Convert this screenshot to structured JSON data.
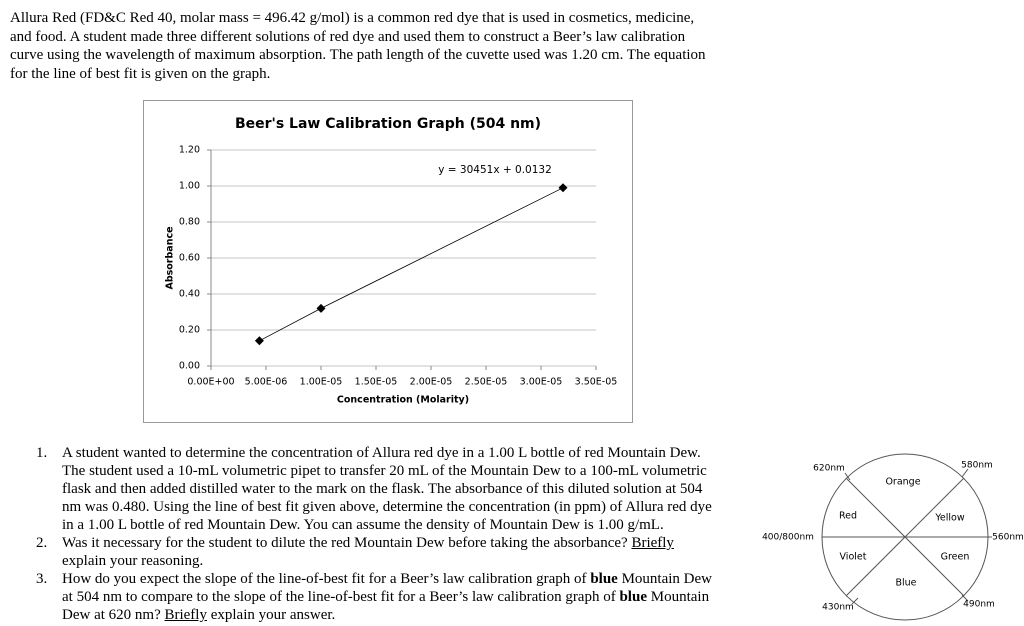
{
  "intro": [
    "Allura Red (FD&C Red 40, molar mass = 496.42 g/mol) is a common red dye that is used in cosmetics, medicine,",
    "and food. A student made three different solutions of red dye and used them to construct a Beer’s law calibration",
    "curve using the wavelength of maximum absorption. The path length of the cuvette used was 1.20 cm. The equation",
    "for the line of best fit is given on the graph."
  ],
  "chart_data": {
    "type": "scatter",
    "title": "Beer's Law Calibration Graph (504 nm)",
    "annotation": "y = 30451x + 0.0132",
    "xlabel": "Concentration (Molarity)",
    "ylabel": "Absorbance",
    "x": [
      4.4e-06,
      1e-05,
      3.2e-05
    ],
    "values": [
      0.14,
      0.32,
      0.99
    ],
    "color": "#000000",
    "line": true,
    "grid": true,
    "xlim": [
      0,
      3.5e-05
    ],
    "ylim": [
      0,
      1.2
    ],
    "xticks": [
      {
        "value": 0,
        "label": "0.00E+00"
      },
      {
        "value": 5e-06,
        "label": "5.00E-06"
      },
      {
        "value": 1e-05,
        "label": "1.00E-05"
      },
      {
        "value": 1.5e-05,
        "label": "1.50E-05"
      },
      {
        "value": 2e-05,
        "label": "2.00E-05"
      },
      {
        "value": 2.5e-05,
        "label": "2.50E-05"
      },
      {
        "value": 3e-05,
        "label": "3.00E-05"
      },
      {
        "value": 3.5e-05,
        "label": "3.50E-05"
      }
    ],
    "yticks": [
      {
        "value": 0,
        "label": "0.00"
      },
      {
        "value": 0.2,
        "label": "0.20"
      },
      {
        "value": 0.4,
        "label": "0.40"
      },
      {
        "value": 0.6,
        "label": "0.60"
      },
      {
        "value": 0.8,
        "label": "0.80"
      },
      {
        "value": 1.0,
        "label": "1.00"
      },
      {
        "value": 1.2,
        "label": "1.20"
      }
    ]
  },
  "questions": [
    {
      "number": "1.",
      "lines": [
        [
          "A student wanted to determine the concentration of Allura red dye in a 1.00 L bottle of red Mountain Dew."
        ],
        [
          "The student used a 10-mL volumetric pipet to transfer 20 mL of the Mountain Dew to a 100-mL volumetric"
        ],
        [
          "flask and then added distilled water to the mark on the flask. The absorbance of this diluted solution at 504"
        ],
        [
          "nm was 0.480. Using the line of best fit given above, determine the concentration (in ppm) of Allura red dye"
        ],
        [
          "in a 1.00 L bottle of red Mountain Dew. You can assume the density of Mountain Dew is 1.00 g/mL."
        ]
      ]
    },
    {
      "number": "2.",
      "lines": [
        [
          "Was it necessary for the student to dilute the red Mountain Dew before taking the absorbance? ",
          "Briefly"
        ],
        [
          "explain your reasoning."
        ]
      ]
    },
    {
      "number": "3.",
      "lines": [
        [
          "How do you expect the slope of the line-of-best fit for a Beer’s law calibration graph of ",
          "blue",
          " Mountain Dew"
        ],
        [
          "at 504 nm to compare to the slope of the line-of-best fit for a Beer’s law calibration graph of ",
          "blue",
          " Mountain"
        ],
        [
          "Dew at 620 nm? ",
          "Briefly",
          " explain your answer."
        ]
      ]
    }
  ],
  "color_wheel": {
    "segments": [
      "Orange",
      "Yellow",
      "Green",
      "Blue",
      "Violet",
      "Red"
    ],
    "wavelengths": [
      "580nm",
      "560nm",
      "490nm",
      "430nm",
      "400/800nm",
      "620nm"
    ]
  }
}
